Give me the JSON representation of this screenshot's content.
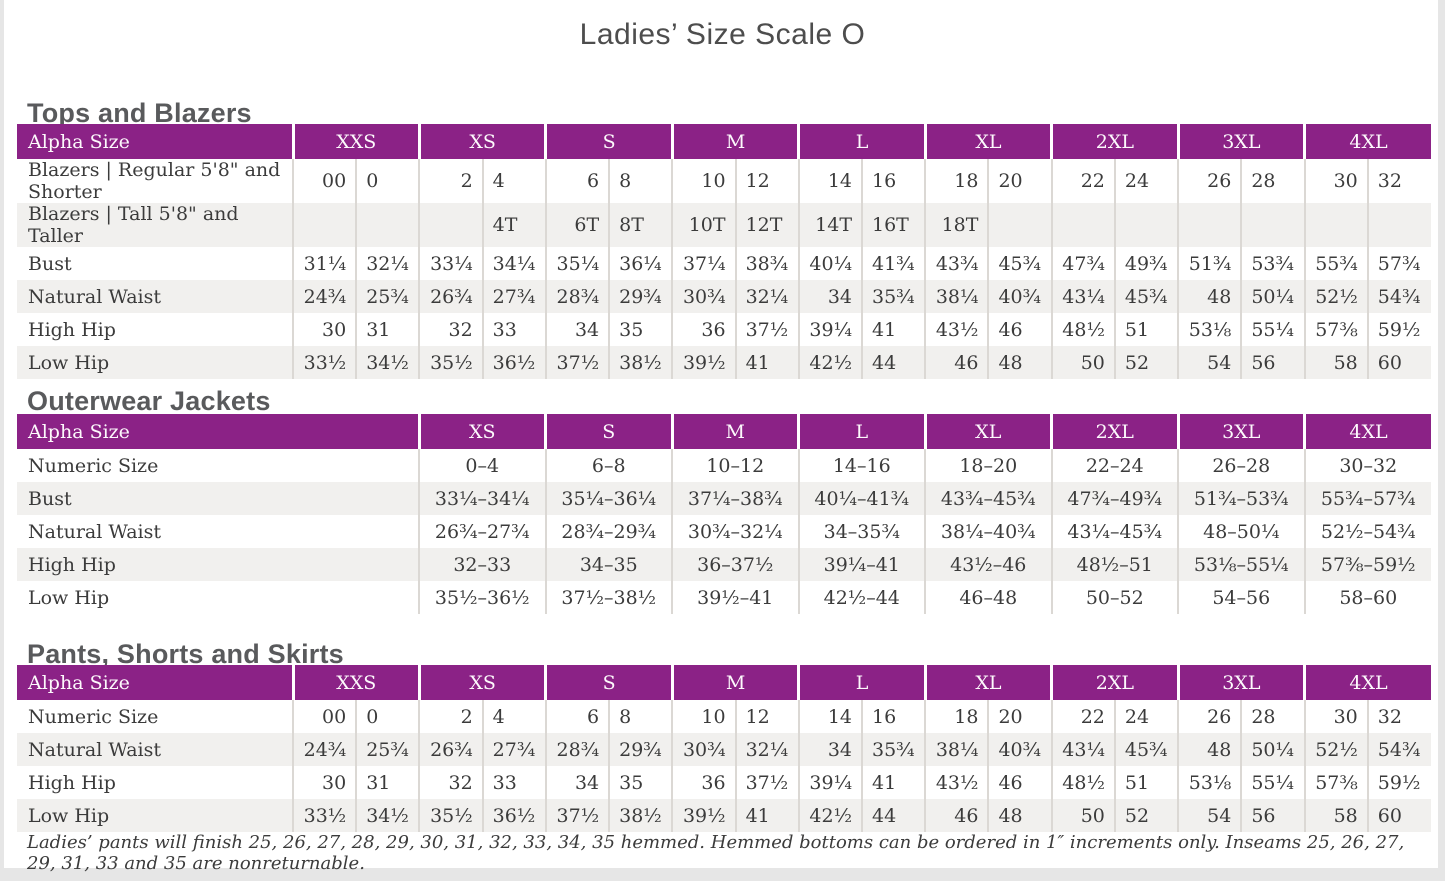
{
  "page": {
    "title": "Ladies’ Size Scale O",
    "footnote": "Ladies’ pants will finish 25, 26, 27, 28, 29, 30, 31, 32, 33, 34, 35 hemmed. Hemmed bottoms can be ordered in 1″ increments only. Inseams 25, 26, 27, 29, 31, 33 and 35 are nonreturnable."
  },
  "colors": {
    "header_purple": "#8b2286",
    "stripe_gray": "#f1f0ee",
    "divider_gray": "#dbd8d4",
    "text_dark": "#3b3b3b",
    "heading_gray": "#595a5c",
    "page_frame_gray": "#e6e6e6"
  },
  "tables": [
    {
      "id": "tops-and-blazers",
      "section_title": "Tops and Blazers",
      "label_header": "Alpha Size",
      "split_columns": true,
      "columns": [
        "XXS",
        "XS",
        "S",
        "M",
        "L",
        "XL",
        "2XL",
        "3XL",
        "4XL"
      ],
      "rows": [
        {
          "label": "Blazers  |  Regular 5'8\" and Shorter",
          "values": [
            [
              "00",
              "0"
            ],
            [
              "2",
              "4"
            ],
            [
              "6",
              "8"
            ],
            [
              "10",
              "12"
            ],
            [
              "14",
              "16"
            ],
            [
              "18",
              "20"
            ],
            [
              "22",
              "24"
            ],
            [
              "26",
              "28"
            ],
            [
              "30",
              "32"
            ]
          ]
        },
        {
          "label": "Blazers  |  Tall 5'8\" and Taller",
          "values": [
            [
              "",
              ""
            ],
            [
              "",
              "4T"
            ],
            [
              "6T",
              "8T"
            ],
            [
              "10T",
              "12T"
            ],
            [
              "14T",
              "16T"
            ],
            [
              "18T",
              ""
            ],
            [
              "",
              ""
            ],
            [
              "",
              ""
            ],
            [
              "",
              ""
            ]
          ]
        },
        {
          "label": "Bust",
          "values": [
            [
              "31¼",
              "32¼"
            ],
            [
              "33¼",
              "34¼"
            ],
            [
              "35¼",
              "36¼"
            ],
            [
              "37¼",
              "38¾"
            ],
            [
              "40¼",
              "41¾"
            ],
            [
              "43¾",
              "45¾"
            ],
            [
              "47¾",
              "49¾"
            ],
            [
              "51¾",
              "53¾"
            ],
            [
              "55¾",
              "57¾"
            ]
          ]
        },
        {
          "label": "Natural Waist",
          "values": [
            [
              "24¾",
              "25¾"
            ],
            [
              "26¾",
              "27¾"
            ],
            [
              "28¾",
              "29¾"
            ],
            [
              "30¾",
              "32¼"
            ],
            [
              "34",
              "35¾"
            ],
            [
              "38¼",
              "40¾"
            ],
            [
              "43¼",
              "45¾"
            ],
            [
              "48",
              "50¼"
            ],
            [
              "52½",
              "54¾"
            ]
          ]
        },
        {
          "label": "High Hip",
          "values": [
            [
              "30",
              "31"
            ],
            [
              "32",
              "33"
            ],
            [
              "34",
              "35"
            ],
            [
              "36",
              "37½"
            ],
            [
              "39¼",
              "41"
            ],
            [
              "43½",
              "46"
            ],
            [
              "48½",
              "51"
            ],
            [
              "53⅛",
              "55¼"
            ],
            [
              "57⅜",
              "59½"
            ]
          ]
        },
        {
          "label": "Low Hip",
          "values": [
            [
              "33½",
              "34½"
            ],
            [
              "35½",
              "36½"
            ],
            [
              "37½",
              "38½"
            ],
            [
              "39½",
              "41"
            ],
            [
              "42½",
              "44"
            ],
            [
              "46",
              "48"
            ],
            [
              "50",
              "52"
            ],
            [
              "54",
              "56"
            ],
            [
              "58",
              "60"
            ]
          ]
        }
      ]
    },
    {
      "id": "outerwear-jackets",
      "section_title": "Outerwear Jackets",
      "label_header": "Alpha Size",
      "split_columns": false,
      "columns": [
        "XS",
        "S",
        "M",
        "L",
        "XL",
        "2XL",
        "3XL",
        "4XL"
      ],
      "rows": [
        {
          "label": "Numeric Size",
          "values": [
            "0–4",
            "6–8",
            "10–12",
            "14–16",
            "18–20",
            "22–24",
            "26–28",
            "30–32"
          ]
        },
        {
          "label": "Bust",
          "values": [
            "33¼–34¼",
            "35¼–36¼",
            "37¼–38¾",
            "40¼–41¾",
            "43¾–45¾",
            "47¾–49¾",
            "51¾–53¾",
            "55¾–57¾"
          ]
        },
        {
          "label": "Natural Waist",
          "values": [
            "26¾–27¾",
            "28¾–29¾",
            "30¾–32¼",
            "34–35¾",
            "38¼–40¾",
            "43¼–45¾",
            "48–50¼",
            "52½–54¾"
          ]
        },
        {
          "label": "High Hip",
          "values": [
            "32–33",
            "34–35",
            "36–37½",
            "39¼–41",
            "43½–46",
            "48½–51",
            "53⅛–55¼",
            "57⅜–59½"
          ]
        },
        {
          "label": "Low Hip",
          "values": [
            "35½–36½",
            "37½–38½",
            "39½–41",
            "42½–44",
            "46–48",
            "50–52",
            "54–56",
            "58–60"
          ]
        }
      ]
    },
    {
      "id": "pants-shorts-and-skirts",
      "section_title": "Pants, Shorts and Skirts",
      "label_header": "Alpha Size",
      "split_columns": true,
      "columns": [
        "XXS",
        "XS",
        "S",
        "M",
        "L",
        "XL",
        "2XL",
        "3XL",
        "4XL"
      ],
      "rows": [
        {
          "label": "Numeric Size",
          "values": [
            [
              "00",
              "0"
            ],
            [
              "2",
              "4"
            ],
            [
              "6",
              "8"
            ],
            [
              "10",
              "12"
            ],
            [
              "14",
              "16"
            ],
            [
              "18",
              "20"
            ],
            [
              "22",
              "24"
            ],
            [
              "26",
              "28"
            ],
            [
              "30",
              "32"
            ]
          ]
        },
        {
          "label": "Natural Waist",
          "values": [
            [
              "24¾",
              "25¾"
            ],
            [
              "26¾",
              "27¾"
            ],
            [
              "28¾",
              "29¾"
            ],
            [
              "30¾",
              "32¼"
            ],
            [
              "34",
              "35¾"
            ],
            [
              "38¼",
              "40¾"
            ],
            [
              "43¼",
              "45¾"
            ],
            [
              "48",
              "50¼"
            ],
            [
              "52½",
              "54¾"
            ]
          ]
        },
        {
          "label": "High Hip",
          "values": [
            [
              "30",
              "31"
            ],
            [
              "32",
              "33"
            ],
            [
              "34",
              "35"
            ],
            [
              "36",
              "37½"
            ],
            [
              "39¼",
              "41"
            ],
            [
              "43½",
              "46"
            ],
            [
              "48½",
              "51"
            ],
            [
              "53⅛",
              "55¼"
            ],
            [
              "57⅜",
              "59½"
            ]
          ]
        },
        {
          "label": "Low Hip",
          "values": [
            [
              "33½",
              "34½"
            ],
            [
              "35½",
              "36½"
            ],
            [
              "37½",
              "38½"
            ],
            [
              "39½",
              "41"
            ],
            [
              "42½",
              "44"
            ],
            [
              "46",
              "48"
            ],
            [
              "50",
              "52"
            ],
            [
              "54",
              "56"
            ],
            [
              "58",
              "60"
            ]
          ]
        }
      ]
    }
  ]
}
